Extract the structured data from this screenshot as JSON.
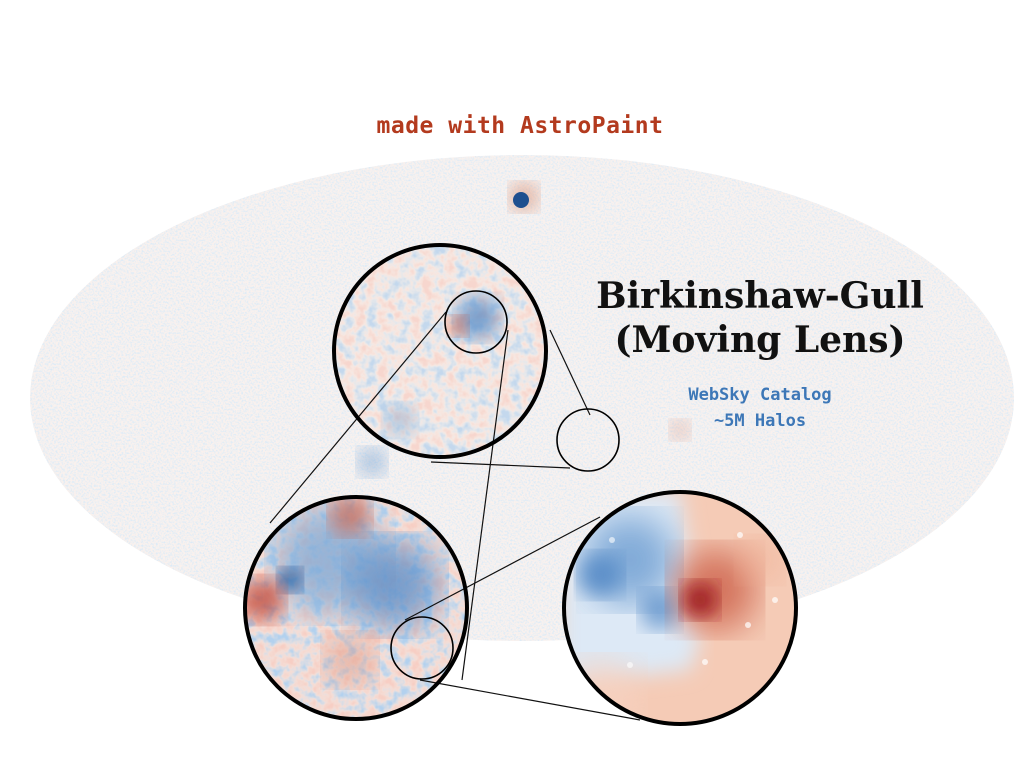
{
  "credit": {
    "text": "made with AstroPaint",
    "color": "#b33a1e"
  },
  "title": {
    "line1": "Birkinshaw-Gull",
    "line2": "(Moving Lens)"
  },
  "catalog": {
    "line1": "WebSky Catalog",
    "line2": "~5M Halos",
    "color": "#3d77b7"
  },
  "colormap": {
    "negative": "#2c69b0",
    "neutral": "#f7f7f7",
    "positive": "#b2242b"
  }
}
